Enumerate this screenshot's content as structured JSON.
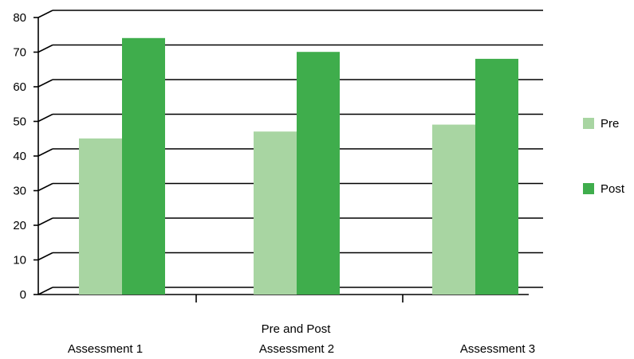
{
  "chart_data": {
    "type": "bar",
    "title": "",
    "xlabel": "Pre and Post",
    "ylabel": "",
    "categories": [
      "Assessment 1",
      "Assessment 2",
      "Assessment 3"
    ],
    "series": [
      {
        "name": "Pre",
        "values": [
          43,
          45,
          47
        ],
        "color": "#a8d5a2"
      },
      {
        "name": "Post",
        "values": [
          72,
          68,
          66
        ],
        "color": "#3fad4c"
      }
    ],
    "ylim": [
      0,
      80
    ],
    "yticks": [
      "0",
      "10",
      "20",
      "30",
      "40",
      "50",
      "60",
      "70",
      "80"
    ],
    "grid": true,
    "legend_position": "right",
    "style_3d": true
  }
}
